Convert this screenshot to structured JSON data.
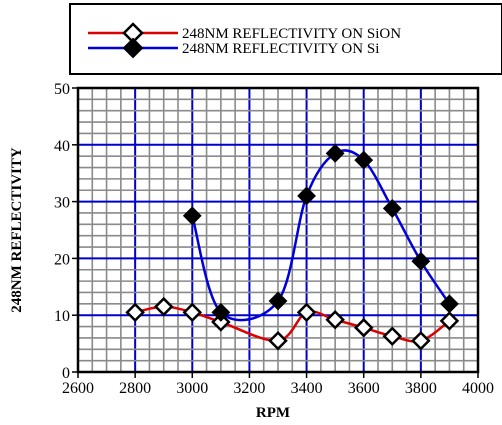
{
  "chart_data": {
    "type": "line",
    "xlabel": "RPM",
    "ylabel": "248NM REFLECTIVITY",
    "xlim": [
      2600,
      4000
    ],
    "ylim": [
      0,
      50
    ],
    "x_ticks": [
      "2600",
      "2800",
      "3000",
      "3200",
      "3400",
      "3600",
      "3800",
      "4000"
    ],
    "y_ticks": [
      "0",
      "10",
      "20",
      "30",
      "40",
      "50"
    ],
    "grid": true,
    "legend_position": "top",
    "colors": {
      "sion": "#dd0000",
      "si": "#0000dd",
      "grid": "#8a8a8a"
    },
    "series": [
      {
        "name": "248NM REFLECTIVITY ON SiON",
        "marker": "open-diamond",
        "x": [
          2800,
          2900,
          3000,
          3100,
          3300,
          3400,
          3500,
          3600,
          3700,
          3800,
          3900
        ],
        "y": [
          10.5,
          11.5,
          10.5,
          8.8,
          5.5,
          10.5,
          9.2,
          7.8,
          6.3,
          5.5,
          9.0
        ]
      },
      {
        "name": "248NM REFLECTIVITY ON Si",
        "marker": "filled-diamond",
        "x": [
          3000,
          3100,
          3300,
          3400,
          3500,
          3600,
          3700,
          3800,
          3900
        ],
        "y": [
          27.5,
          10.5,
          12.5,
          31.0,
          38.5,
          37.3,
          28.8,
          19.5,
          12.0
        ]
      }
    ]
  }
}
